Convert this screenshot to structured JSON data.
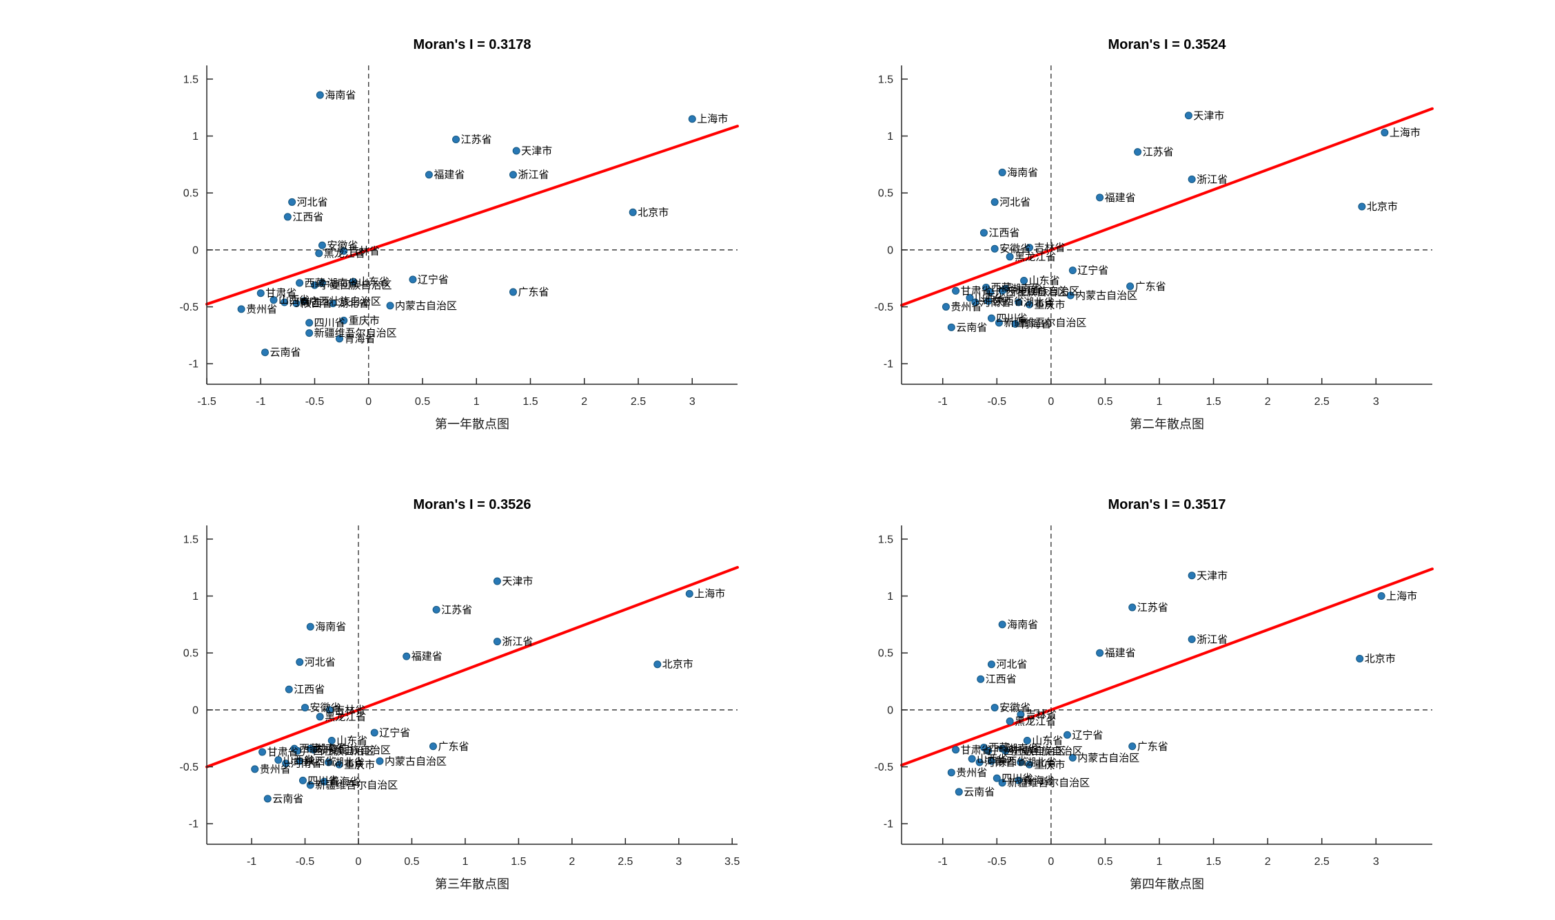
{
  "figure": {
    "background": "#ffffff",
    "colors": {
      "marker_fill": "#2878b5",
      "marker_edge": "#15567f",
      "regression_line": "#ff0000",
      "reference_dash": "#3a3a3a",
      "axis": "#262626",
      "tick_text": "#262626",
      "label_text": "#000000",
      "xlabel_text": "#1a1a1a"
    }
  },
  "chart_data": [
    {
      "type": "scatter",
      "title": "Moran's I = 0.3178",
      "xlabel": "第一年散点图",
      "moran_i": 0.3178,
      "regression": {
        "slope": 0.3178,
        "intercept": 0
      },
      "xlim": [
        -1.5,
        3.42
      ],
      "ylim": [
        -1.18,
        1.62
      ],
      "xticks": [
        -1.5,
        -1,
        -0.5,
        0,
        0.5,
        1,
        1.5,
        2,
        2.5,
        3
      ],
      "yticks": [
        -1,
        -0.5,
        0,
        0.5,
        1,
        1.5
      ],
      "grid": false,
      "points": [
        {
          "label": "上海市",
          "x": 3.0,
          "y": 1.15
        },
        {
          "label": "北京市",
          "x": 2.45,
          "y": 0.33
        },
        {
          "label": "天津市",
          "x": 1.37,
          "y": 0.87
        },
        {
          "label": "浙江省",
          "x": 1.34,
          "y": 0.66
        },
        {
          "label": "广东省",
          "x": 1.34,
          "y": -0.37
        },
        {
          "label": "江苏省",
          "x": 0.81,
          "y": 0.97
        },
        {
          "label": "福建省",
          "x": 0.56,
          "y": 0.66
        },
        {
          "label": "辽宁省",
          "x": 0.41,
          "y": -0.26
        },
        {
          "label": "内蒙古自治区",
          "x": 0.2,
          "y": -0.49
        },
        {
          "label": "山东省",
          "x": -0.14,
          "y": -0.28
        },
        {
          "label": "吉林省",
          "x": -0.23,
          "y": -0.01
        },
        {
          "label": "重庆市",
          "x": -0.23,
          "y": -0.62
        },
        {
          "label": "青海省",
          "x": -0.27,
          "y": -0.78
        },
        {
          "label": "湖北省",
          "x": -0.33,
          "y": -0.47
        },
        {
          "label": "安徽省",
          "x": -0.43,
          "y": 0.04
        },
        {
          "label": "湖南省",
          "x": -0.43,
          "y": -0.29
        },
        {
          "label": "海南省",
          "x": -0.45,
          "y": 1.36
        },
        {
          "label": "黑龙江省",
          "x": -0.46,
          "y": -0.03
        },
        {
          "label": "宁夏回族自治区",
          "x": -0.5,
          "y": -0.31
        },
        {
          "label": "四川省",
          "x": -0.55,
          "y": -0.64
        },
        {
          "label": "新疆维吾尔自治区",
          "x": -0.55,
          "y": -0.73
        },
        {
          "label": "广西壮族自治区",
          "x": -0.6,
          "y": -0.45
        },
        {
          "label": "西藏",
          "x": -0.64,
          "y": -0.29
        },
        {
          "label": "陕西省",
          "x": -0.67,
          "y": -0.47
        },
        {
          "label": "河北省",
          "x": -0.71,
          "y": 0.42
        },
        {
          "label": "江西省",
          "x": -0.75,
          "y": 0.29
        },
        {
          "label": "河南省",
          "x": -0.78,
          "y": -0.46
        },
        {
          "label": "山西省",
          "x": -0.88,
          "y": -0.44
        },
        {
          "label": "云南省",
          "x": -0.96,
          "y": -0.9
        },
        {
          "label": "甘肃省",
          "x": -1.0,
          "y": -0.38
        },
        {
          "label": "贵州省",
          "x": -1.18,
          "y": -0.52
        }
      ]
    },
    {
      "type": "scatter",
      "title": "Moran's I = 0.3524",
      "xlabel": "第二年散点图",
      "moran_i": 0.3524,
      "regression": {
        "slope": 0.3524,
        "intercept": 0
      },
      "xlim": [
        -1.38,
        3.52
      ],
      "ylim": [
        -1.18,
        1.62
      ],
      "xticks": [
        -1,
        -0.5,
        0,
        0.5,
        1,
        1.5,
        2,
        2.5,
        3
      ],
      "yticks": [
        -1,
        -0.5,
        0,
        0.5,
        1,
        1.5
      ],
      "grid": false,
      "points": [
        {
          "label": "上海市",
          "x": 3.08,
          "y": 1.03
        },
        {
          "label": "北京市",
          "x": 2.87,
          "y": 0.38
        },
        {
          "label": "天津市",
          "x": 1.27,
          "y": 1.18
        },
        {
          "label": "浙江省",
          "x": 1.3,
          "y": 0.62
        },
        {
          "label": "江苏省",
          "x": 0.8,
          "y": 0.86
        },
        {
          "label": "广东省",
          "x": 0.73,
          "y": -0.32
        },
        {
          "label": "福建省",
          "x": 0.45,
          "y": 0.46
        },
        {
          "label": "辽宁省",
          "x": 0.2,
          "y": -0.18
        },
        {
          "label": "内蒙古自治区",
          "x": 0.18,
          "y": -0.4
        },
        {
          "label": "吉林省",
          "x": -0.2,
          "y": 0.02
        },
        {
          "label": "重庆市",
          "x": -0.2,
          "y": -0.48
        },
        {
          "label": "山东省",
          "x": -0.25,
          "y": -0.27
        },
        {
          "label": "湖北省",
          "x": -0.3,
          "y": -0.46
        },
        {
          "label": "青海省",
          "x": -0.33,
          "y": -0.65
        },
        {
          "label": "黑龙江省",
          "x": -0.38,
          "y": -0.06
        },
        {
          "label": "湖南省",
          "x": -0.42,
          "y": -0.34
        },
        {
          "label": "海南省",
          "x": -0.45,
          "y": 0.68
        },
        {
          "label": "宁夏回族自治区",
          "x": -0.45,
          "y": -0.36
        },
        {
          "label": "新疆维吾尔自治区",
          "x": -0.48,
          "y": -0.64
        },
        {
          "label": "安徽省",
          "x": -0.52,
          "y": 0.01
        },
        {
          "label": "河北省",
          "x": -0.52,
          "y": 0.42
        },
        {
          "label": "四川省",
          "x": -0.55,
          "y": -0.6
        },
        {
          "label": "广西壮族自治区",
          "x": -0.56,
          "y": -0.37
        },
        {
          "label": "陕西省",
          "x": -0.58,
          "y": -0.45
        },
        {
          "label": "西藏",
          "x": -0.6,
          "y": -0.33
        },
        {
          "label": "江西省",
          "x": -0.62,
          "y": 0.15
        },
        {
          "label": "河南省",
          "x": -0.7,
          "y": -0.46
        },
        {
          "label": "山西省",
          "x": -0.75,
          "y": -0.42
        },
        {
          "label": "甘肃省",
          "x": -0.88,
          "y": -0.36
        },
        {
          "label": "云南省",
          "x": -0.92,
          "y": -0.68
        },
        {
          "label": "贵州省",
          "x": -0.97,
          "y": -0.5
        }
      ]
    },
    {
      "type": "scatter",
      "title": "Moran's I = 0.3526",
      "xlabel": "第三年散点图",
      "moran_i": 0.3526,
      "regression": {
        "slope": 0.3526,
        "intercept": 0
      },
      "xlim": [
        -1.42,
        3.55
      ],
      "ylim": [
        -1.18,
        1.62
      ],
      "xticks": [
        -1,
        -0.5,
        0,
        0.5,
        1,
        1.5,
        2,
        2.5,
        3,
        3.5
      ],
      "yticks": [
        -1,
        -0.5,
        0,
        0.5,
        1,
        1.5
      ],
      "grid": false,
      "points": [
        {
          "label": "上海市",
          "x": 3.1,
          "y": 1.02
        },
        {
          "label": "北京市",
          "x": 2.8,
          "y": 0.4
        },
        {
          "label": "天津市",
          "x": 1.3,
          "y": 1.13
        },
        {
          "label": "浙江省",
          "x": 1.3,
          "y": 0.6
        },
        {
          "label": "江苏省",
          "x": 0.73,
          "y": 0.88
        },
        {
          "label": "广东省",
          "x": 0.7,
          "y": -0.32
        },
        {
          "label": "福建省",
          "x": 0.45,
          "y": 0.47
        },
        {
          "label": "内蒙古自治区",
          "x": 0.2,
          "y": -0.45
        },
        {
          "label": "辽宁省",
          "x": 0.15,
          "y": -0.2
        },
        {
          "label": "重庆市",
          "x": -0.18,
          "y": -0.48
        },
        {
          "label": "山东省",
          "x": -0.25,
          "y": -0.27
        },
        {
          "label": "吉林省",
          "x": -0.27,
          "y": 0.0
        },
        {
          "label": "湖北省",
          "x": -0.28,
          "y": -0.46
        },
        {
          "label": "青海省",
          "x": -0.32,
          "y": -0.63
        },
        {
          "label": "黑龙江省",
          "x": -0.36,
          "y": -0.06
        },
        {
          "label": "宁夏回族自治区",
          "x": -0.42,
          "y": -0.35
        },
        {
          "label": "海南省",
          "x": -0.45,
          "y": 0.73
        },
        {
          "label": "湖南省",
          "x": -0.45,
          "y": -0.34
        },
        {
          "label": "新疆维吾尔自治区",
          "x": -0.45,
          "y": -0.66
        },
        {
          "label": "安徽省",
          "x": -0.5,
          "y": 0.02
        },
        {
          "label": "四川省",
          "x": -0.52,
          "y": -0.62
        },
        {
          "label": "河北省",
          "x": -0.55,
          "y": 0.42
        },
        {
          "label": "陕西省",
          "x": -0.55,
          "y": -0.45
        },
        {
          "label": "广西壮族自治区",
          "x": -0.57,
          "y": -0.36
        },
        {
          "label": "西藏",
          "x": -0.6,
          "y": -0.34
        },
        {
          "label": "江西省",
          "x": -0.65,
          "y": 0.18
        },
        {
          "label": "河南省",
          "x": -0.68,
          "y": -0.47
        },
        {
          "label": "山西省",
          "x": -0.75,
          "y": -0.44
        },
        {
          "label": "云南省",
          "x": -0.85,
          "y": -0.78
        },
        {
          "label": "甘肃省",
          "x": -0.9,
          "y": -0.37
        },
        {
          "label": "贵州省",
          "x": -0.97,
          "y": -0.52
        }
      ]
    },
    {
      "type": "scatter",
      "title": "Moran's I = 0.3517",
      "xlabel": "第四年散点图",
      "moran_i": 0.3517,
      "regression": {
        "slope": 0.3517,
        "intercept": 0
      },
      "xlim": [
        -1.38,
        3.52
      ],
      "ylim": [
        -1.18,
        1.62
      ],
      "xticks": [
        -1,
        -0.5,
        0,
        0.5,
        1,
        1.5,
        2,
        2.5,
        3
      ],
      "yticks": [
        -1,
        -0.5,
        0,
        0.5,
        1,
        1.5
      ],
      "grid": false,
      "points": [
        {
          "label": "上海市",
          "x": 3.05,
          "y": 1.0
        },
        {
          "label": "北京市",
          "x": 2.85,
          "y": 0.45
        },
        {
          "label": "天津市",
          "x": 1.3,
          "y": 1.18
        },
        {
          "label": "浙江省",
          "x": 1.3,
          "y": 0.62
        },
        {
          "label": "江苏省",
          "x": 0.75,
          "y": 0.9
        },
        {
          "label": "广东省",
          "x": 0.75,
          "y": -0.32
        },
        {
          "label": "福建省",
          "x": 0.45,
          "y": 0.5
        },
        {
          "label": "内蒙古自治区",
          "x": 0.2,
          "y": -0.42
        },
        {
          "label": "辽宁省",
          "x": 0.15,
          "y": -0.22
        },
        {
          "label": "重庆市",
          "x": -0.2,
          "y": -0.48
        },
        {
          "label": "山东省",
          "x": -0.22,
          "y": -0.27
        },
        {
          "label": "吉林省",
          "x": -0.28,
          "y": -0.04
        },
        {
          "label": "湖北省",
          "x": -0.28,
          "y": -0.46
        },
        {
          "label": "青海省",
          "x": -0.3,
          "y": -0.62
        },
        {
          "label": "黑龙江省",
          "x": -0.38,
          "y": -0.1
        },
        {
          "label": "宁夏回族自治区",
          "x": -0.42,
          "y": -0.36
        },
        {
          "label": "海南省",
          "x": -0.45,
          "y": 0.75
        },
        {
          "label": "湖南省",
          "x": -0.45,
          "y": -0.34
        },
        {
          "label": "新疆维吾尔自治区",
          "x": -0.45,
          "y": -0.64
        },
        {
          "label": "四川省",
          "x": -0.5,
          "y": -0.6
        },
        {
          "label": "安徽省",
          "x": -0.52,
          "y": 0.02
        },
        {
          "label": "河北省",
          "x": -0.55,
          "y": 0.4
        },
        {
          "label": "陕西省",
          "x": -0.55,
          "y": -0.45
        },
        {
          "label": "广西壮族自治区",
          "x": -0.58,
          "y": -0.36
        },
        {
          "label": "西藏",
          "x": -0.62,
          "y": -0.33
        },
        {
          "label": "江西省",
          "x": -0.65,
          "y": 0.27
        },
        {
          "label": "河南省",
          "x": -0.66,
          "y": -0.46
        },
        {
          "label": "山西省",
          "x": -0.73,
          "y": -0.43
        },
        {
          "label": "甘肃省",
          "x": -0.88,
          "y": -0.35
        },
        {
          "label": "云南省",
          "x": -0.85,
          "y": -0.72
        },
        {
          "label": "贵州省",
          "x": -0.92,
          "y": -0.55
        }
      ]
    }
  ]
}
